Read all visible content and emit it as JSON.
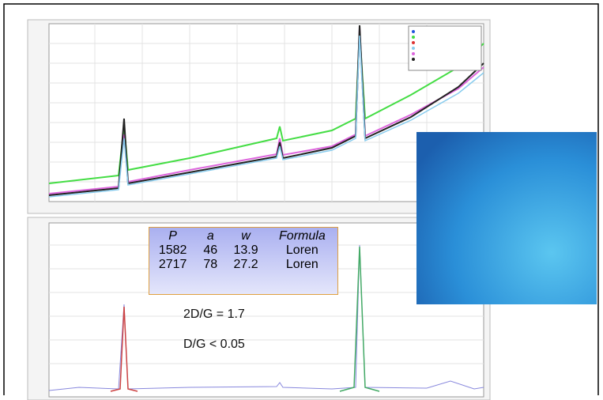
{
  "table": {
    "header": [
      "P",
      "a",
      "w",
      "Formula"
    ],
    "rows": [
      [
        "1582",
        "46",
        "13.9",
        "Loren"
      ],
      [
        "2717",
        "78",
        "27.2",
        "Loren"
      ]
    ]
  },
  "annotations": [
    "2D/G = 1.7",
    "D/G < 0.05"
  ]
}
